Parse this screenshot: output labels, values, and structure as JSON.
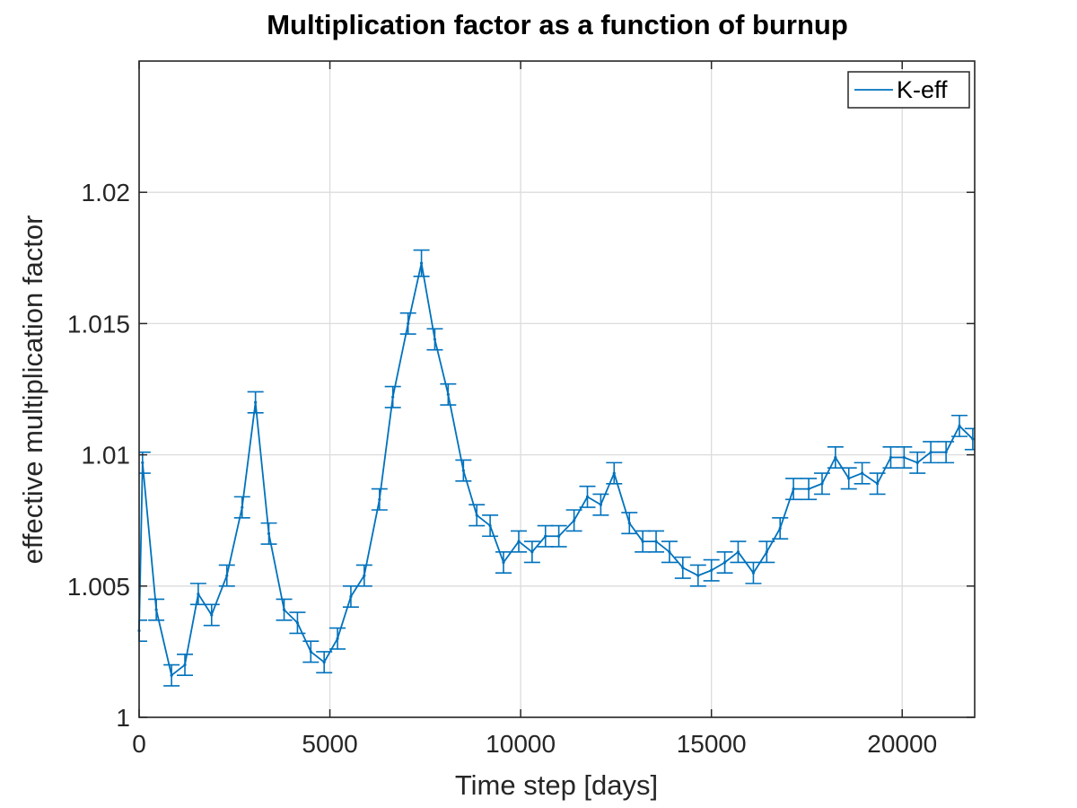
{
  "chart_data": {
    "type": "line",
    "title": "Multiplication factor as a function of burnup",
    "xlabel": "Time step [days]",
    "ylabel": "effective multiplication factor",
    "xlim": [
      0,
      21900
    ],
    "ylim": [
      1.0,
      1.025
    ],
    "xticks": [
      0,
      5000,
      10000,
      15000,
      20000
    ],
    "xtick_labels": [
      "0",
      "5000",
      "10000",
      "15000",
      "20000"
    ],
    "yticks": [
      1.0,
      1.005,
      1.01,
      1.015,
      1.02
    ],
    "ytick_labels": [
      "1",
      "1.005",
      "1.01",
      "1.015",
      "1.02"
    ],
    "grid": true,
    "error_bars": true,
    "legend_position": "top-right",
    "series": [
      {
        "name": "K-eff",
        "color": "#0072bd",
        "x": [
          0,
          90,
          450,
          850,
          1200,
          1550,
          1900,
          2300,
          2700,
          3050,
          3400,
          3800,
          4150,
          4500,
          4850,
          5200,
          5550,
          5900,
          6300,
          6650,
          7050,
          7400,
          7750,
          8100,
          8500,
          8850,
          9200,
          9550,
          9950,
          10300,
          10650,
          11000,
          11400,
          11750,
          12100,
          12450,
          12850,
          13200,
          13550,
          13900,
          14250,
          14650,
          15000,
          15350,
          15700,
          16100,
          16450,
          16800,
          17150,
          17550,
          17900,
          18250,
          18600,
          18950,
          19350,
          19700,
          20050,
          20400,
          20750,
          21150,
          21500,
          21850
        ],
        "y": [
          1.0033,
          1.0097,
          1.0041,
          1.0016,
          1.002,
          1.0047,
          1.0039,
          1.0054,
          1.008,
          1.012,
          1.007,
          1.0041,
          1.0036,
          1.0025,
          1.0021,
          1.003,
          1.0046,
          1.0054,
          1.0083,
          1.0122,
          1.015,
          1.0173,
          1.0144,
          1.0123,
          1.0094,
          1.0077,
          1.0073,
          1.0059,
          1.0067,
          1.0063,
          1.0069,
          1.0069,
          1.0075,
          1.0084,
          1.0081,
          1.0093,
          1.0074,
          1.0067,
          1.0067,
          1.0063,
          1.0057,
          1.0054,
          1.0056,
          1.0059,
          1.0063,
          1.0055,
          1.0063,
          1.0072,
          1.0087,
          1.0087,
          1.0089,
          1.0099,
          1.0091,
          1.0093,
          1.0089,
          1.0099,
          1.0099,
          1.0097,
          1.0101,
          1.0101,
          1.0111,
          1.0106
        ],
        "error": [
          0.0004,
          0.0004,
          0.0004,
          0.0004,
          0.0004,
          0.0004,
          0.0004,
          0.0004,
          0.0004,
          0.0004,
          0.0004,
          0.0004,
          0.0004,
          0.0004,
          0.0004,
          0.0004,
          0.0004,
          0.0004,
          0.0004,
          0.0004,
          0.0004,
          0.0005,
          0.0004,
          0.0004,
          0.0004,
          0.0004,
          0.0004,
          0.0004,
          0.0004,
          0.0004,
          0.0004,
          0.0004,
          0.0004,
          0.0004,
          0.0004,
          0.0004,
          0.0004,
          0.0004,
          0.0004,
          0.0004,
          0.0004,
          0.0004,
          0.0004,
          0.0004,
          0.0004,
          0.0004,
          0.0004,
          0.0004,
          0.0004,
          0.0004,
          0.0004,
          0.0004,
          0.0004,
          0.0004,
          0.0004,
          0.0004,
          0.0004,
          0.0004,
          0.0004,
          0.0004,
          0.0004,
          0.0004
        ]
      }
    ]
  }
}
